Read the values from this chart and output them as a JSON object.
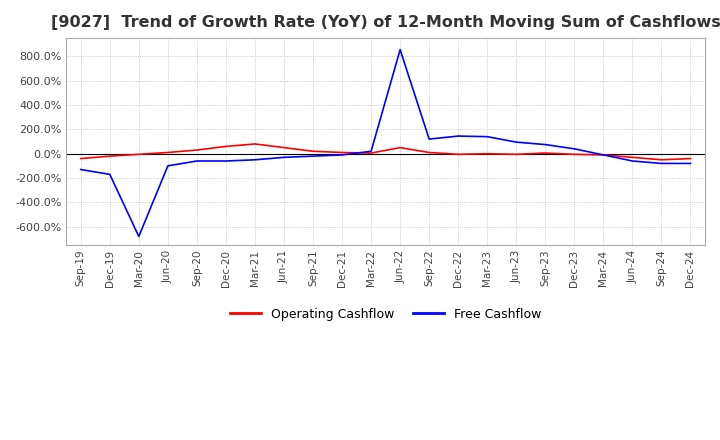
{
  "title": "[9027]  Trend of Growth Rate (YoY) of 12-Month Moving Sum of Cashflows",
  "title_fontsize": 11.5,
  "title_color": "#333333",
  "background_color": "#ffffff",
  "grid_color": "#aaaaaa",
  "ylim": [
    -750,
    950
  ],
  "yticks": [
    -600,
    -400,
    -200,
    0,
    200,
    400,
    600,
    800
  ],
  "x_labels": [
    "Sep-19",
    "Dec-19",
    "Mar-20",
    "Jun-20",
    "Sep-20",
    "Dec-20",
    "Mar-21",
    "Jun-21",
    "Sep-21",
    "Dec-21",
    "Mar-22",
    "Jun-22",
    "Sep-22",
    "Dec-22",
    "Mar-23",
    "Jun-23",
    "Sep-23",
    "Dec-23",
    "Mar-24",
    "Jun-24",
    "Sep-24",
    "Dec-24"
  ],
  "operating_cashflow": [
    -40,
    -20,
    -5,
    10,
    30,
    60,
    80,
    50,
    20,
    10,
    5,
    50,
    10,
    -5,
    0,
    -5,
    5,
    -5,
    -10,
    -30,
    -50,
    -40
  ],
  "free_cashflow": [
    -130,
    -170,
    -680,
    -100,
    -60,
    -60,
    -50,
    -30,
    -20,
    -10,
    20,
    855,
    120,
    145,
    140,
    95,
    75,
    40,
    -10,
    -60,
    -80,
    -80
  ],
  "op_color": "#ff0000",
  "free_color": "#0000ff",
  "line_width": 1.2,
  "zero_line_color": "#000000",
  "legend_labels": [
    "Operating Cashflow",
    "Free Cashflow"
  ]
}
